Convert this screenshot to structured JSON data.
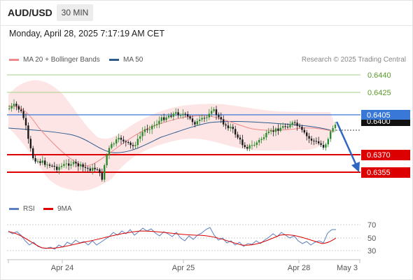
{
  "header": {
    "pair": "AUD/USD",
    "timeframe": "30 MIN"
  },
  "datetime": "Monday, April 28, 2025 7:17:19 AM CET",
  "legend_top": [
    {
      "label": "MA 20 + Bollinger Bands",
      "color": "#f08a8a"
    },
    {
      "label": "MA 50",
      "color": "#2f5b8f"
    }
  ],
  "copyright": "Research © 2025 Trading Central",
  "price_levels": [
    {
      "value": 0.644,
      "label": "0.6440",
      "kind": "resistance",
      "color": "#7cb342"
    },
    {
      "value": 0.6425,
      "label": "0.6425",
      "kind": "resistance",
      "color": "#7cb342"
    },
    {
      "value": 0.6405,
      "label": "0.6405",
      "kind": "pivot",
      "color": "#3a78d8"
    },
    {
      "value": 0.637,
      "label": "0.6370",
      "kind": "support",
      "color": "#dd0000"
    },
    {
      "value": 0.6355,
      "label": "0.6355",
      "kind": "support",
      "color": "#dd0000"
    }
  ],
  "current_price": "0.6400",
  "legend_bottom": [
    {
      "label": "RSI",
      "color": "#5b7fbf"
    },
    {
      "label": "9MA",
      "color": "#dd0000"
    }
  ],
  "rsi_levels": [
    "70",
    "50",
    "30"
  ],
  "x_axis": [
    "Apr 24",
    "Apr 25",
    "Apr 28",
    "May 3"
  ],
  "chart_data": {
    "type": "candlestick",
    "y_levels": [
      0.644,
      0.6425,
      0.6405,
      0.64,
      0.637,
      0.6355
    ],
    "x_ticks": [
      "Apr 24",
      "Apr 25",
      "Apr 28",
      "May 3"
    ],
    "rsi_ticks": [
      70,
      50,
      30
    ],
    "series": [
      {
        "name": "MA 20 + Bollinger Bands"
      },
      {
        "name": "MA 50"
      },
      {
        "name": "RSI"
      },
      {
        "name": "9MA"
      }
    ]
  }
}
